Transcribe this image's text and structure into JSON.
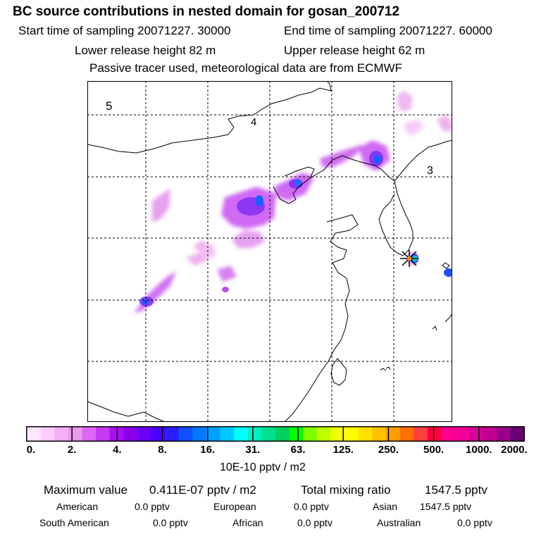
{
  "title": "BC  source contributions in nested domain for gosan_200712",
  "sampling": {
    "start": "Start time of sampling 20071227. 30000",
    "end": "End time of sampling 20071227. 60000"
  },
  "release": {
    "lower": "Lower release height   82 m",
    "upper": "Upper release height   62 m"
  },
  "note": "Passive tracer used, meteorological data are from ECMWF",
  "map": {
    "region_labels": [
      "5",
      "4",
      "3"
    ],
    "receptor_marker": "star-marker"
  },
  "colorbar": {
    "ticks": [
      "0.",
      "2.",
      "4.",
      "8.",
      "16.",
      "31.",
      "63.",
      "125.",
      "250.",
      "500.",
      "1000.",
      "2000."
    ],
    "colors": [
      "#ffe6ff",
      "#ffccff",
      "#f5b0f5",
      "#eb99eb",
      "#dd66f2",
      "#c43cf2",
      "#a710f2",
      "#8a00e6",
      "#6b00f2",
      "#4c00ff",
      "#2a20ff",
      "#1050ff",
      "#0078ff",
      "#00a0ff",
      "#00c8ff",
      "#00ffff",
      "#00f0c0",
      "#00e090",
      "#00d060",
      "#00ff00",
      "#80ff00",
      "#c0ff00",
      "#f0ff00",
      "#ffff00",
      "#ffe000",
      "#ffc000",
      "#ffa000",
      "#ff7000",
      "#ff4040",
      "#ff0040",
      "#ff0090",
      "#f00098",
      "#d80098",
      "#c00090",
      "#9a0088",
      "#6a0070"
    ],
    "units": "10E-10 pptv / m2"
  },
  "stats": {
    "max_label": "Maximum value",
    "max_value": "0.411E-07 pptv / m2",
    "mix_label": "Total mixing ratio",
    "mix_value": "1547.5 pptv"
  },
  "sources": [
    {
      "name": "American",
      "value": "0.0 pptv"
    },
    {
      "name": "European",
      "value": "0.0 pptv"
    },
    {
      "name": "Asian",
      "value": "1547.5 pptv"
    },
    {
      "name": "South American",
      "value": "0.0 pptv"
    },
    {
      "name": "African",
      "value": "0.0 pptv"
    },
    {
      "name": "Australian",
      "value": "0.0 pptv"
    }
  ]
}
